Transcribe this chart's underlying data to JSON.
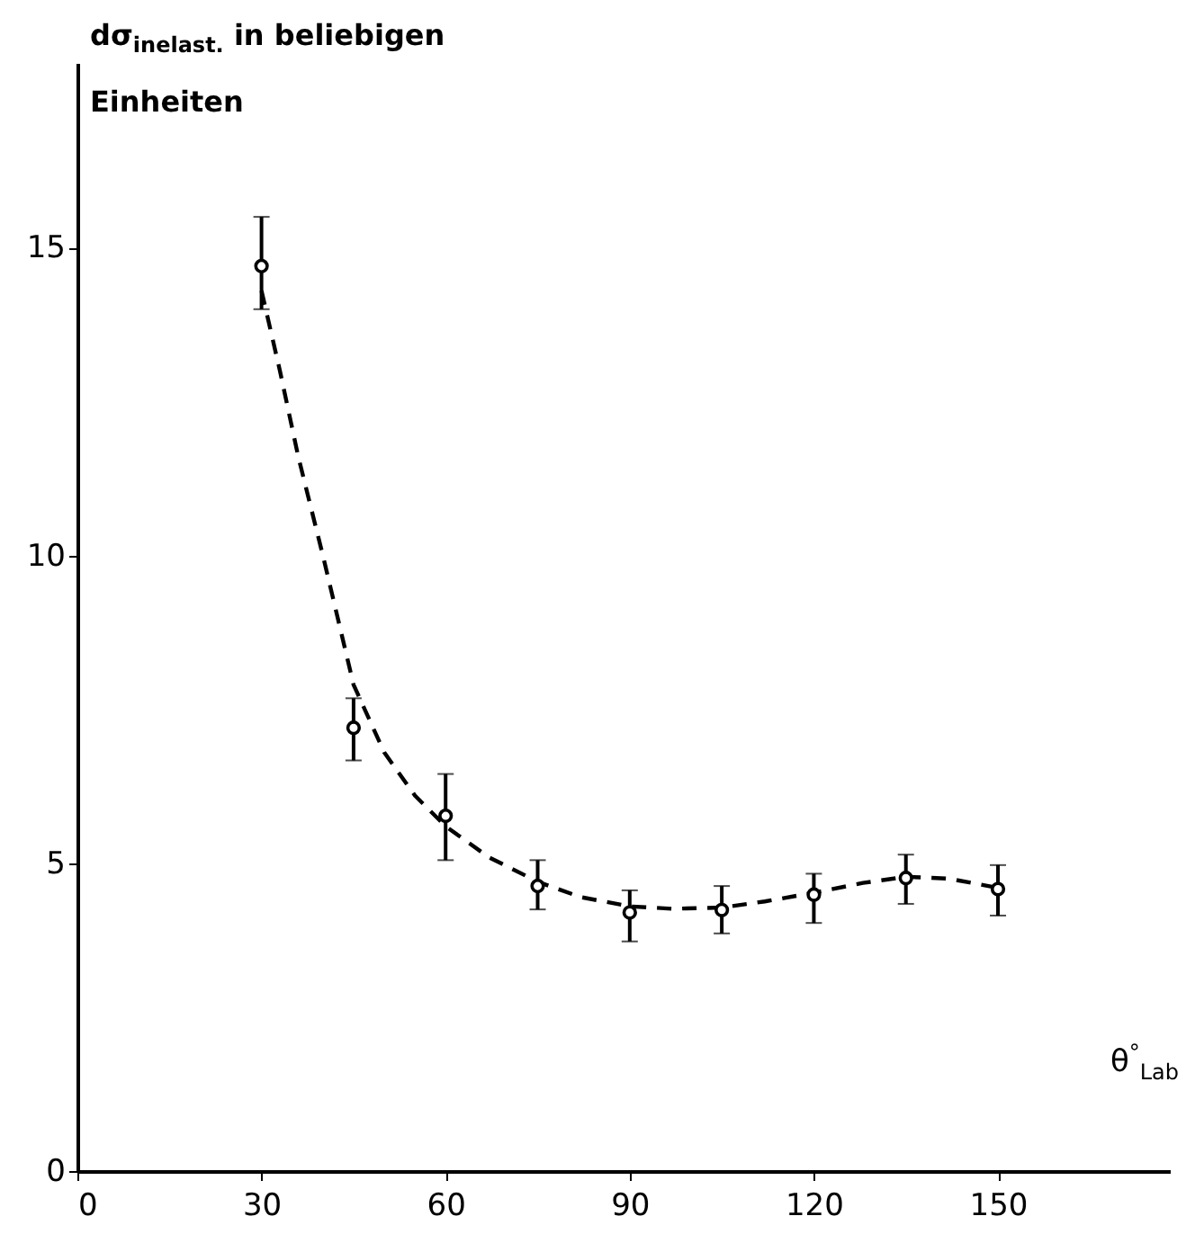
{
  "chart_data": {
    "type": "scatter",
    "xlabel": "θ$^{°}$$_{Lab}$",
    "ylabel": "dσ$_{inelast.}$ in beliebigen Einheiten",
    "x": [
      30,
      45,
      60,
      75,
      90,
      105,
      120,
      135,
      150
    ],
    "series": [
      {
        "color": "#000000",
        "marker": "circle",
        "values": [
          14.7,
          7.2,
          5.77,
          4.63,
          4.2,
          4.24,
          4.49,
          4.76,
          4.58
        ],
        "errors": [
          [
            14.0,
            15.5
          ],
          [
            6.67,
            7.68
          ],
          [
            5.05,
            6.45
          ],
          [
            4.25,
            5.05
          ],
          [
            3.73,
            4.56
          ],
          [
            3.86,
            4.63
          ],
          [
            4.03,
            4.83
          ],
          [
            4.34,
            5.14
          ],
          [
            4.15,
            4.97
          ]
        ]
      },
      {
        "type": "line",
        "color": "#000000",
        "line_style": "dashed",
        "x": [
          30,
          33,
          36,
          40,
          45,
          50,
          55,
          60,
          67,
          75,
          82,
          90,
          97,
          105,
          112,
          120,
          128,
          135,
          142,
          150
        ],
        "values": [
          14.3,
          13.0,
          11.6,
          10.0,
          7.9,
          6.8,
          6.1,
          5.6,
          5.1,
          4.7,
          4.45,
          4.3,
          4.26,
          4.28,
          4.38,
          4.52,
          4.68,
          4.78,
          4.75,
          4.6
        ]
      }
    ],
    "xlim": [
      0,
      178
    ],
    "ylim": [
      0,
      18
    ],
    "xticks": [
      0,
      30,
      60,
      90,
      120,
      150
    ],
    "yticks": [
      0,
      5,
      10,
      15
    ],
    "grid": false
  }
}
